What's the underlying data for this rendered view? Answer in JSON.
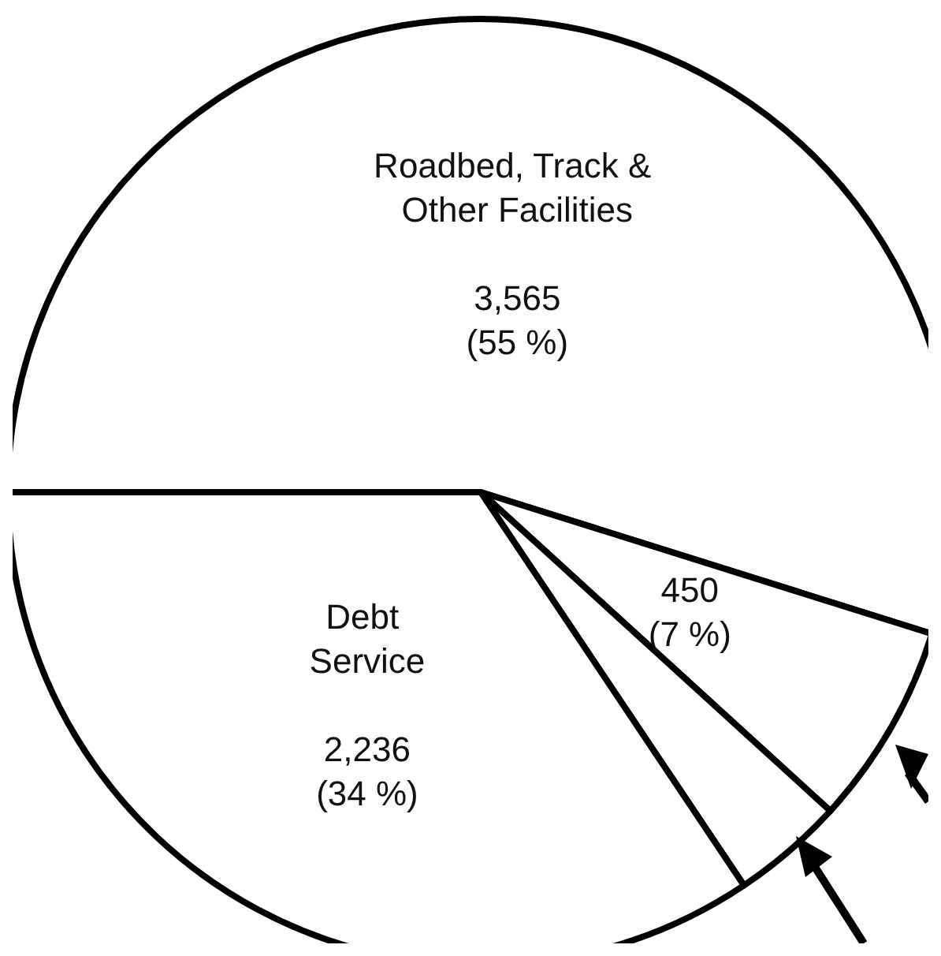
{
  "chart_data": {
    "type": "pie",
    "categories": [
      "Roadbed, Track & Other Facilities",
      null,
      null,
      "Debt Service"
    ],
    "values": [
      3565,
      450,
      250,
      2236
    ],
    "colors": [
      "#ffffff",
      "#ffffff",
      "#ffffff",
      "#ffffff"
    ],
    "value_labels": [
      "3,565\n(55 %)",
      "450\n(7 %)",
      null,
      "2,236\n(34 %)"
    ],
    "legend": false
  }
}
